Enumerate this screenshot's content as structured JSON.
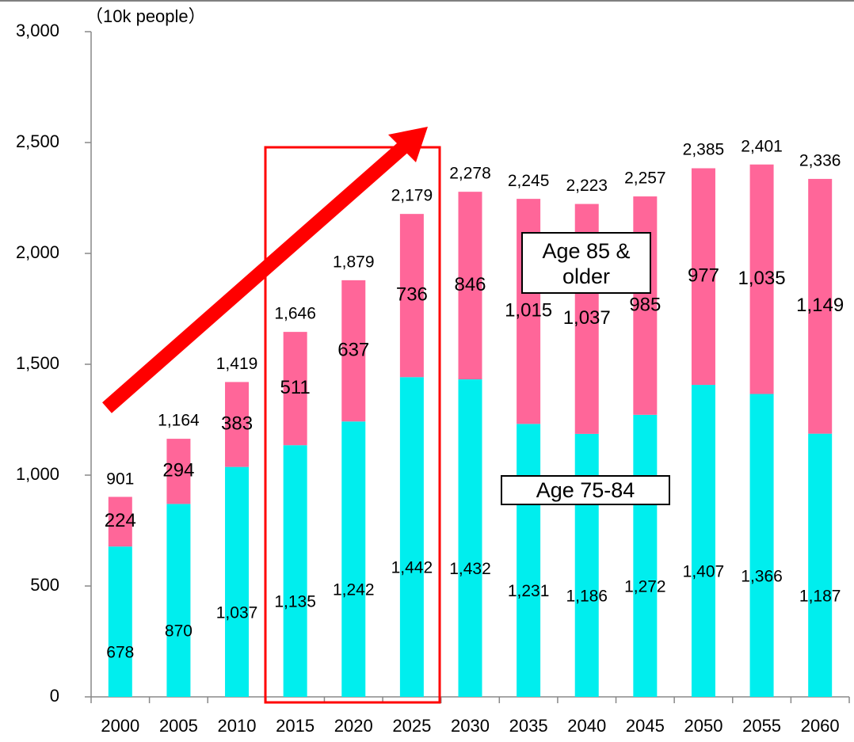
{
  "chart_data": {
    "type": "stacked_bar",
    "y_axis_label": "（10k people）",
    "categories": [
      "2000",
      "2005",
      "2010",
      "2015",
      "2020",
      "2025",
      "2030",
      "2035",
      "2040",
      "2045",
      "2050",
      "2055",
      "2060"
    ],
    "series": [
      {
        "name": "Age 75-84",
        "color": "#00eeee",
        "values": [
          678,
          870,
          1037,
          1135,
          1242,
          1442,
          1432,
          1231,
          1186,
          1272,
          1407,
          1366,
          1187
        ],
        "value_labels": [
          "678",
          "870",
          "1,037",
          "1,135",
          "1,242",
          "1,442",
          "1,432",
          "1,231",
          "1,186",
          "1,272",
          "1,407",
          "1,366",
          "1,187"
        ]
      },
      {
        "name": "Age 85 & older",
        "color": "#ff6699",
        "values": [
          224,
          294,
          383,
          511,
          637,
          736,
          846,
          1015,
          1037,
          985,
          977,
          1035,
          1149
        ],
        "value_labels": [
          "224",
          "294",
          "383",
          "511",
          "637",
          "736",
          "846",
          "1,015",
          "1,037",
          "985",
          "977",
          "1,035",
          "1,149"
        ]
      }
    ],
    "totals": {
      "values": [
        901,
        1164,
        1419,
        1646,
        1879,
        2179,
        2278,
        2245,
        2223,
        2257,
        2385,
        2401,
        2336
      ],
      "value_labels": [
        "901",
        "1,164",
        "1,419",
        "1,646",
        "1,879",
        "2,179",
        "2,278",
        "2,245",
        "2,223",
        "2,257",
        "2,385",
        "2,401",
        "2,336"
      ]
    },
    "ylim": [
      0,
      3000
    ],
    "yticks": [
      0,
      500,
      {
        "value": 1000,
        "label": "1,000"
      },
      {
        "value": 1500,
        "label": "1,500"
      },
      {
        "value": 2000,
        "label": "2,000"
      },
      {
        "value": 2500,
        "label": "2,500"
      },
      {
        "value": 3000,
        "label": "3,000"
      }
    ],
    "grid": false
  }
}
